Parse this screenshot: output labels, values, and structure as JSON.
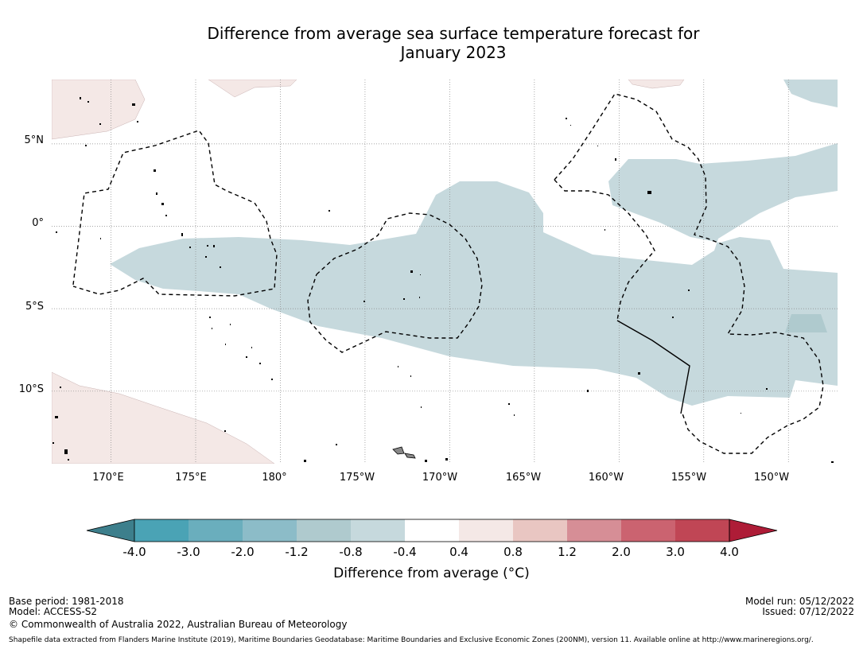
{
  "title": {
    "line1": "Difference from average sea surface temperature forecast for",
    "line2": "January 2023"
  },
  "map": {
    "lat_labels": [
      "5°N",
      "0°",
      "5°S",
      "10°S"
    ],
    "lon_labels": [
      "170°E",
      "175°E",
      "180°",
      "175°W",
      "170°W",
      "165°W",
      "160°W",
      "155°W",
      "150°W"
    ],
    "lat_range": [
      -14.4,
      8.9
    ],
    "lon_range": [
      166.5,
      212.9
    ],
    "lat_ticks": [
      5,
      0,
      -5,
      -10
    ],
    "lon_ticks": [
      170,
      175,
      180,
      185,
      190,
      195,
      200,
      205,
      210
    ]
  },
  "colorbar": {
    "labels": [
      "-4.0",
      "-3.0",
      "-2.0",
      "-1.2",
      "-0.8",
      "-0.4",
      "0.4",
      "0.8",
      "1.2",
      "2.0",
      "3.0",
      "4.0"
    ],
    "colors": [
      "#3d7f8c",
      "#4aa3b5",
      "#6aaebd",
      "#8cbcc8",
      "#afcace",
      "#c6d9dd",
      "#ffffff",
      "#f4e8e6",
      "#e9c6c2",
      "#d68e96",
      "#cb6370",
      "#c04655",
      "#ae1c37"
    ],
    "title": "Difference from average (°C)"
  },
  "footer": {
    "base_period": "Base period: 1981-2018",
    "model": "Model: ACCESS-S2",
    "copyright": "© Commonwealth of Australia 2022, Australian Bureau of Meteorology",
    "model_run": "Model run: 05/12/2022",
    "issued": "Issued: 07/12/2022",
    "shapefile": "Shapefile data extracted from Flanders Marine Institute (2019), Maritime Boundaries Geodatabase: Maritime Boundaries and Exclusive Economic Zones (200NM), version 11. Available online at http://www.marineregions.org/."
  }
}
